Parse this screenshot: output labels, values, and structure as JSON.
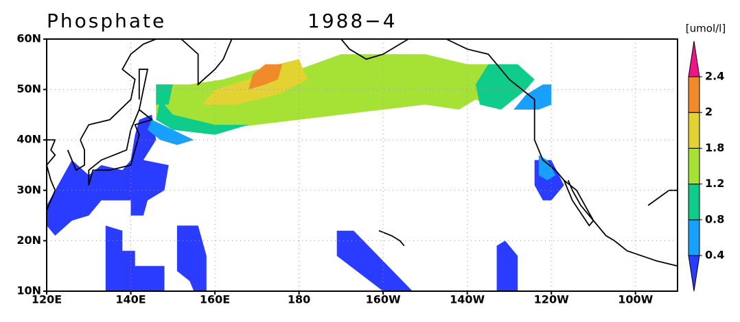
{
  "chart_data": {
    "type": "map",
    "title": "Phosphate",
    "subtitle": "1988−4",
    "colorbar_label": "[umol/l]",
    "xlim": [
      120,
      270
    ],
    "ylim": [
      10,
      60
    ],
    "xticks": [
      {
        "value": 120,
        "label": "120E"
      },
      {
        "value": 140,
        "label": "140E"
      },
      {
        "value": 160,
        "label": "160E"
      },
      180,
      {
        "value": 200,
        "label": "160W"
      },
      {
        "value": 220,
        "label": "140W"
      },
      {
        "value": 240,
        "label": "120W"
      },
      {
        "value": 260,
        "label": "100W"
      }
    ],
    "yticks": [
      {
        "value": 10,
        "label": "10N"
      },
      {
        "value": 20,
        "label": "20N"
      },
      {
        "value": 30,
        "label": "30N"
      },
      {
        "value": 40,
        "label": "40N"
      },
      {
        "value": 50,
        "label": "50N"
      },
      {
        "value": 60,
        "label": "60N"
      }
    ],
    "grid": true,
    "levels": [
      0.4,
      0.8,
      1.2,
      1.8,
      2,
      2.4
    ],
    "colors": [
      "#2a3cff",
      "#18a0ff",
      "#10cc8a",
      "#a6e236",
      "#e2d232",
      "#f08a2a",
      "#f0148c"
    ]
  }
}
